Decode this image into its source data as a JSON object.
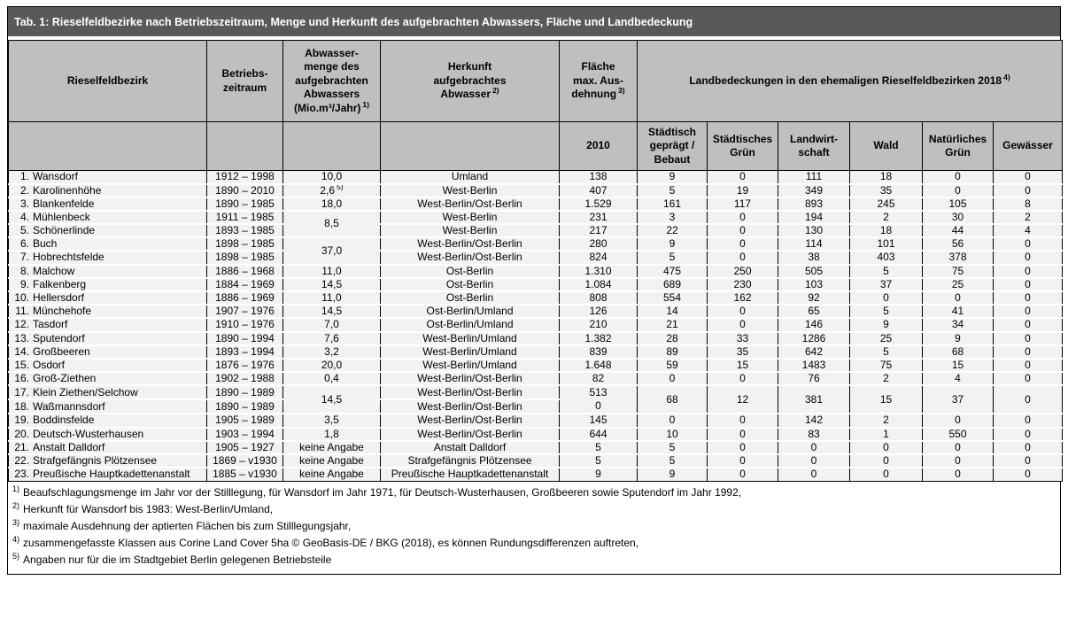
{
  "title": "Tab. 1: Rieselfeldbezirke nach Betriebszeitraum, Menge und Herkunft des aufgebrachten Abwassers, Fläche und Landbedeckung",
  "colors": {
    "title_bar_bg": "#595959",
    "title_bar_text": "#ffffff",
    "header_bg": "#bfbfbf",
    "row_bg": "#f2f2f2",
    "border": "#000000"
  },
  "header": {
    "col_rieselfeldbezirk": "Rieselfeldbezirk",
    "col_betriebszeitraum": "Betriebs-\nzeitraum",
    "col_abwassermenge": "Abwasser-\nmenge des\naufgebrachten\nAbwassers\n(Mio.m³/Jahr)",
    "col_abwassermenge_sup": "1)",
    "col_herkunft": "Herkunft\naufgebrachtes\nAbwasser",
    "col_herkunft_sup": "2)",
    "col_flaeche": "Fläche\nmax. Aus-\ndehnung",
    "col_flaeche_sup": "3)",
    "col_landbedeckung": "Landbedeckungen in den ehemaligen Rieselfeldbezirken 2018",
    "col_landbedeckung_sup": "4)",
    "sub_flaeche": "2010",
    "sub_categories": [
      "Städtisch\ngeprägt /\nBebaut",
      "Städtisches\nGrün",
      "Landwirt-\nschaft",
      "Wald",
      "Natürliches\nGrün",
      "Gewässer"
    ]
  },
  "rows": [
    {
      "num": "1.",
      "name": "Wansdorf",
      "zeitraum": "1912 – 1998",
      "menge": "10,0",
      "herkunft": "Umland",
      "flaeche": "138",
      "land": [
        "9",
        "0",
        "111",
        "18",
        "0",
        "0"
      ]
    },
    {
      "num": "2.",
      "name": "Karolinenhöhe",
      "zeitraum": "1890 – 2010",
      "menge": "2,6",
      "mengeSup": "5)",
      "herkunft": "West-Berlin",
      "flaeche": "407",
      "land": [
        "5",
        "19",
        "349",
        "35",
        "0",
        "0"
      ]
    },
    {
      "num": "3.",
      "name": "Blankenfelde",
      "zeitraum": "1890 – 1985",
      "menge": "18,0",
      "herkunft": "West-Berlin/Ost-Berlin",
      "flaeche": "1.529",
      "land": [
        "161",
        "117",
        "893",
        "245",
        "105",
        "8"
      ]
    },
    {
      "num": "4.",
      "name": "Mühlenbeck",
      "zeitraum": "1911 – 1985",
      "menge": "8,5",
      "mengeSpan": 2,
      "herkunft": "West-Berlin",
      "flaeche": "231",
      "land": [
        "3",
        "0",
        "194",
        "2",
        "30",
        "2"
      ]
    },
    {
      "num": "5.",
      "name": "Schönerlinde",
      "zeitraum": "1893 – 1985",
      "mengeSkip": true,
      "herkunft": "West-Berlin",
      "flaeche": "217",
      "land": [
        "22",
        "0",
        "130",
        "18",
        "44",
        "4"
      ]
    },
    {
      "num": "6.",
      "name": "Buch",
      "zeitraum": "1898 – 1985",
      "menge": "37,0",
      "mengeSpan": 2,
      "herkunft": "West-Berlin/Ost-Berlin",
      "flaeche": "280",
      "land": [
        "9",
        "0",
        "114",
        "101",
        "56",
        "0"
      ]
    },
    {
      "num": "7.",
      "name": "Hobrechtsfelde",
      "zeitraum": "1898 – 1985",
      "mengeSkip": true,
      "herkunft": "West-Berlin/Ost-Berlin",
      "flaeche": "824",
      "land": [
        "5",
        "0",
        "38",
        "403",
        "378",
        "0"
      ]
    },
    {
      "num": "8.",
      "name": "Malchow",
      "zeitraum": "1886 – 1968",
      "menge": "11,0",
      "herkunft": "Ost-Berlin",
      "flaeche": "1.310",
      "land": [
        "475",
        "250",
        "505",
        "5",
        "75",
        "0"
      ]
    },
    {
      "num": "9.",
      "name": "Falkenberg",
      "zeitraum": "1884 – 1969",
      "menge": "14,5",
      "herkunft": "Ost-Berlin",
      "flaeche": "1.084",
      "land": [
        "689",
        "230",
        "103",
        "37",
        "25",
        "0"
      ]
    },
    {
      "num": "10.",
      "name": "Hellersdorf",
      "zeitraum": "1886 – 1969",
      "menge": "11,0",
      "herkunft": "Ost-Berlin",
      "flaeche": "808",
      "land": [
        "554",
        "162",
        "92",
        "0",
        "0",
        "0"
      ]
    },
    {
      "num": "11.",
      "name": "Münchehofe",
      "zeitraum": "1907 – 1976",
      "menge": "14,5",
      "herkunft": "Ost-Berlin/Umland",
      "flaeche": "126",
      "land": [
        "14",
        "0",
        "65",
        "5",
        "41",
        "0"
      ]
    },
    {
      "num": "12.",
      "name": "Tasdorf",
      "zeitraum": "1910 – 1976",
      "menge": "7,0",
      "herkunft": "Ost-Berlin/Umland",
      "flaeche": "210",
      "land": [
        "21",
        "0",
        "146",
        "9",
        "34",
        "0"
      ]
    },
    {
      "num": "13.",
      "name": "Sputendorf",
      "zeitraum": "1890 – 1994",
      "menge": "7,6",
      "herkunft": "West-Berlin/Umland",
      "flaeche": "1.382",
      "land": [
        "28",
        "33",
        "1286",
        "25",
        "9",
        "0"
      ]
    },
    {
      "num": "14.",
      "name": "Großbeeren",
      "zeitraum": "1893 – 1994",
      "menge": "3,2",
      "herkunft": "West-Berlin/Umland",
      "flaeche": "839",
      "land": [
        "89",
        "35",
        "642",
        "5",
        "68",
        "0"
      ]
    },
    {
      "num": "15.",
      "name": "Osdorf",
      "zeitraum": "1876 – 1976",
      "menge": "20,0",
      "herkunft": "West-Berlin/Umland",
      "flaeche": "1.648",
      "land": [
        "59",
        "15",
        "1483",
        "75",
        "15",
        "0"
      ]
    },
    {
      "num": "16.",
      "name": "Groß-Ziethen",
      "zeitraum": "1902 – 1988",
      "menge": "0,4",
      "herkunft": "West-Berlin/Ost-Berlin",
      "flaeche": "82",
      "land": [
        "0",
        "0",
        "76",
        "2",
        "4",
        "0"
      ]
    },
    {
      "num": "17.",
      "name": "Klein Ziethen/Selchow",
      "zeitraum": "1890 – 1989",
      "menge": "14,5",
      "mengeSpan": 2,
      "herkunft": "West-Berlin/Ost-Berlin",
      "flaecheLines": [
        "513",
        "0"
      ],
      "flaecheSpan": 2,
      "land": [
        "68",
        "12",
        "381",
        "15",
        "37",
        "0"
      ],
      "landSpan": 2
    },
    {
      "num": "18.",
      "name": "Waßmannsdorf",
      "zeitraum": "1890 – 1989",
      "mengeSkip": true,
      "herkunft": "West-Berlin/Ost-Berlin",
      "flaecheSkip": true,
      "landSkip": true
    },
    {
      "num": "19.",
      "name": "Boddinsfelde",
      "zeitraum": "1905 – 1989",
      "menge": "3,5",
      "herkunft": "West-Berlin/Ost-Berlin",
      "flaeche": "145",
      "land": [
        "0",
        "0",
        "142",
        "2",
        "0",
        "0"
      ]
    },
    {
      "num": "20.",
      "name": "Deutsch-Wusterhausen",
      "zeitraum": "1903 – 1994",
      "menge": "1,8",
      "herkunft": "West-Berlin/Ost-Berlin",
      "flaeche": "644",
      "land": [
        "10",
        "0",
        "83",
        "1",
        "550",
        "0"
      ]
    },
    {
      "num": "21.",
      "name": "Anstalt Dalldorf",
      "zeitraum": "1905 – 1927",
      "menge": "keine Angabe",
      "herkunft": "Anstalt Dalldorf",
      "flaeche": "5",
      "land": [
        "5",
        "0",
        "0",
        "0",
        "0",
        "0"
      ]
    },
    {
      "num": "22.",
      "name": "Strafgefängnis Plötzensee",
      "zeitraum": "1869 – v1930",
      "menge": "keine Angabe",
      "herkunft": "Strafgefängnis Plötzensee",
      "flaeche": "5",
      "land": [
        "5",
        "0",
        "0",
        "0",
        "0",
        "0"
      ]
    },
    {
      "num": "23.",
      "name": "Preußische Hauptkadettenanstalt",
      "zeitraum": "1885 – v1930",
      "menge": "keine Angabe",
      "herkunft": "Preußische Hauptkadettenanstalt",
      "flaeche": "9",
      "land": [
        "9",
        "0",
        "0",
        "0",
        "0",
        "0"
      ]
    }
  ],
  "footnotes": [
    {
      "sup": "1)",
      "text": "Beaufschlagungsmenge im Jahr vor der Stilllegung, für Wansdorf im Jahr 1971, für Deutsch-Wusterhausen, Großbeeren sowie Sputendorf im Jahr 1992,"
    },
    {
      "sup": "2)",
      "text": "Herkunft für Wansdorf bis 1983: West-Berlin/Umland,"
    },
    {
      "sup": "3)",
      "text": "maximale Ausdehnung der aptierten Flächen bis zum Stilllegungsjahr,"
    },
    {
      "sup": "4)",
      "text": "zusammengefasste Klassen aus Corine Land Cover 5ha © GeoBasis-DE / BKG (2018), es können Rundungsdifferenzen auftreten,"
    },
    {
      "sup": "5)",
      "text": "Angaben nur für die im Stadtgebiet Berlin gelegenen Betriebsteile"
    }
  ]
}
